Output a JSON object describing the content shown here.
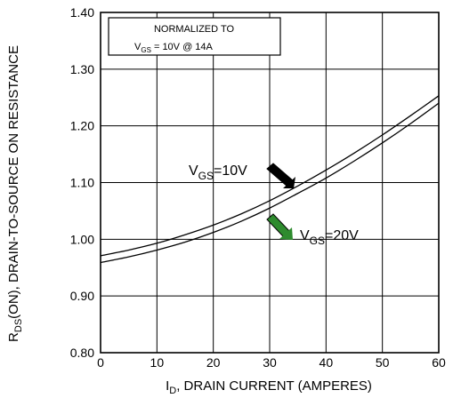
{
  "chart_data": {
    "type": "line",
    "xlabel": {
      "main": "I",
      "sub": "D",
      "rest": ", DRAIN CURRENT (AMPERES)"
    },
    "ylabel": {
      "main": "R",
      "sub": "DS",
      "rest": "(ON), DRAIN-TO-SOURCE ON RESISTANCE"
    },
    "xlim": [
      0,
      60
    ],
    "ylim": [
      0.8,
      1.4
    ],
    "x_ticks": [
      "0",
      "10",
      "20",
      "30",
      "40",
      "50",
      "60"
    ],
    "y_ticks": [
      "0.80",
      "0.90",
      "1.00",
      "1.10",
      "1.20",
      "1.30",
      "1.40"
    ],
    "grid": true,
    "annotation_box": {
      "line1": "NORMALIZED TO",
      "line2_main": "V",
      "line2_sub": "GS",
      "line2_rest": " = 10V  @  14A"
    },
    "series": [
      {
        "label_main": "V",
        "label_sub": "GS",
        "label_rest": "=10V",
        "arrow_color": "#000000",
        "x": [
          0,
          5,
          10,
          15,
          20,
          25,
          30,
          35,
          40,
          45,
          50,
          55,
          60
        ],
        "y": [
          0.971,
          0.981,
          0.993,
          1.008,
          1.025,
          1.045,
          1.068,
          1.094,
          1.122,
          1.152,
          1.184,
          1.218,
          1.253
        ]
      },
      {
        "label_main": "V",
        "label_sub": "GS",
        "label_rest": "=20V",
        "arrow_color": "#2e8b2e",
        "x": [
          0,
          5,
          10,
          15,
          20,
          25,
          30,
          35,
          40,
          45,
          50,
          55,
          60
        ],
        "y": [
          0.959,
          0.969,
          0.981,
          0.995,
          1.012,
          1.032,
          1.055,
          1.081,
          1.108,
          1.138,
          1.17,
          1.204,
          1.24
        ]
      }
    ]
  }
}
